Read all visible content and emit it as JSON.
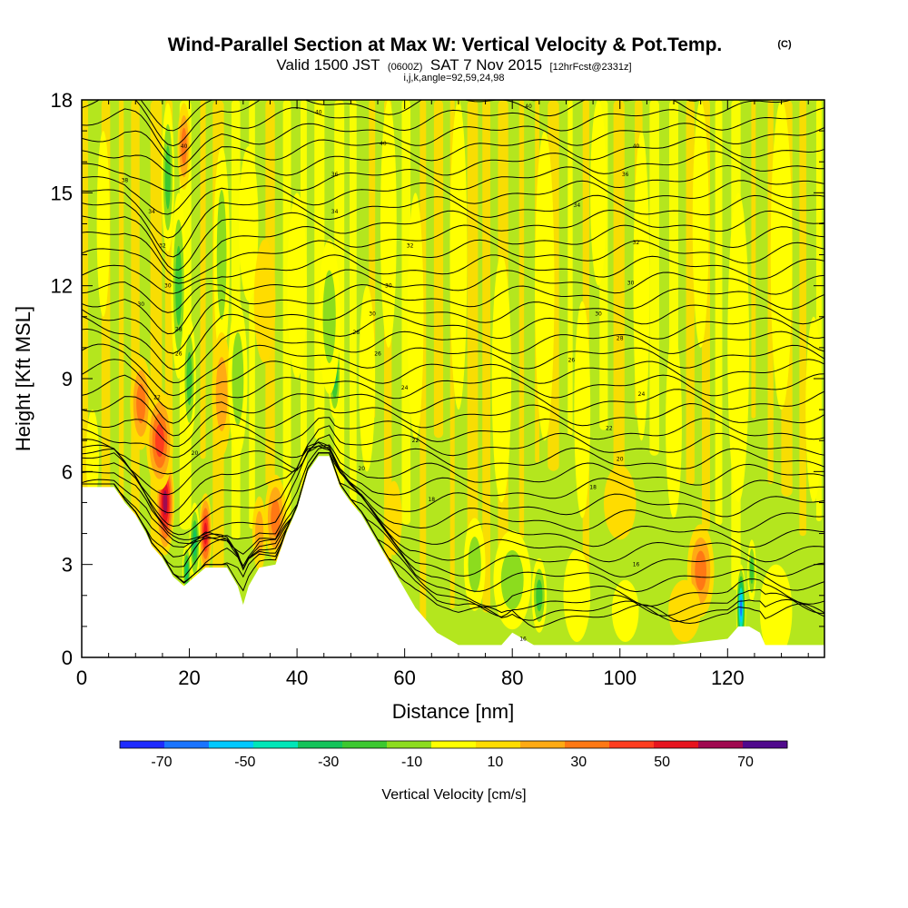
{
  "header": {
    "title": "Wind-Parallel Section at Max W: Vertical Velocity & Pot.Temp.",
    "title_mark": "(C)",
    "subtitle_parts": [
      "Valid 1500 JST",
      "(0600Z)",
      "SAT 7 Nov 2015",
      "[12hrFcst@2331z]"
    ],
    "params": "i,j,k,angle=92,59,24,98"
  },
  "chart_data": {
    "type": "heatmap",
    "xlabel": "Distance [nm]",
    "ylabel": "Height [Kft MSL]",
    "xlim": [
      0,
      138
    ],
    "ylim": [
      0,
      18
    ],
    "x_ticks": [
      0,
      20,
      40,
      60,
      80,
      100,
      120
    ],
    "y_ticks": [
      0,
      3,
      6,
      9,
      12,
      15,
      18
    ],
    "field": "Vertical Velocity",
    "colorbar": {
      "title": "Vertical Velocity [cm/s]",
      "tick_labels": [
        "-70",
        "-50",
        "-30",
        "-10",
        "10",
        "30",
        "50",
        "70"
      ],
      "tick_values": [
        -70,
        -50,
        -30,
        -10,
        10,
        30,
        50,
        70
      ],
      "bin_edges": [
        -80,
        -70,
        -60,
        -50,
        -40,
        -30,
        -20,
        -10,
        0,
        10,
        20,
        30,
        40,
        50,
        60,
        70,
        80
      ],
      "colors": [
        "#1e2bff",
        "#1a74ff",
        "#00c8ff",
        "#00e6b8",
        "#14c35a",
        "#3cc830",
        "#8cdc1e",
        "#ffff00",
        "#ffdc00",
        "#ffaa14",
        "#ff7814",
        "#ff3c1e",
        "#e6141e",
        "#a00a50",
        "#500a8c"
      ]
    },
    "terrain": [
      [
        0,
        5.5
      ],
      [
        6,
        5.5
      ],
      [
        8,
        5.0
      ],
      [
        10,
        4.6
      ],
      [
        12,
        4.0
      ],
      [
        13,
        3.6
      ],
      [
        15,
        3.2
      ],
      [
        17,
        2.6
      ],
      [
        19,
        2.3
      ],
      [
        21,
        2.6
      ],
      [
        23,
        2.9
      ],
      [
        25,
        2.9
      ],
      [
        27,
        2.9
      ],
      [
        29,
        2.3
      ],
      [
        30,
        1.7
      ],
      [
        31,
        2.3
      ],
      [
        33,
        2.9
      ],
      [
        36,
        3.0
      ],
      [
        38,
        4.0
      ],
      [
        40,
        4.8
      ],
      [
        42,
        6.0
      ],
      [
        44,
        6.5
      ],
      [
        46,
        6.5
      ],
      [
        48,
        5.5
      ],
      [
        50,
        5.0
      ],
      [
        52,
        4.6
      ],
      [
        54,
        4.0
      ],
      [
        56,
        3.4
      ],
      [
        58,
        2.8
      ],
      [
        60,
        2.2
      ],
      [
        62,
        1.6
      ],
      [
        64,
        1.2
      ],
      [
        66,
        0.8
      ],
      [
        68,
        0.6
      ],
      [
        70,
        0.4
      ],
      [
        74,
        0.4
      ],
      [
        78,
        0.4
      ],
      [
        80,
        0.8
      ],
      [
        82,
        0.6
      ],
      [
        84,
        0.4
      ],
      [
        90,
        0.4
      ],
      [
        100,
        0.4
      ],
      [
        110,
        0.4
      ],
      [
        120,
        0.6
      ],
      [
        122,
        1.0
      ],
      [
        124,
        1.0
      ],
      [
        126,
        0.8
      ],
      [
        127,
        0.4
      ],
      [
        138,
        0.4
      ]
    ],
    "vv_features": [
      {
        "x": 15.5,
        "y": 5.0,
        "sx": 1.7,
        "sy": 1.7,
        "v": 68
      },
      {
        "x": 14.5,
        "y": 7.0,
        "sx": 2.5,
        "sy": 1.6,
        "v": 48
      },
      {
        "x": 11.0,
        "y": 8.2,
        "sx": 2.0,
        "sy": 1.5,
        "v": 35
      },
      {
        "x": 23.0,
        "y": 4.0,
        "sx": 1.2,
        "sy": 1.3,
        "v": 55
      },
      {
        "x": 21.0,
        "y": 3.7,
        "sx": 1.0,
        "sy": 1.3,
        "v": -45
      },
      {
        "x": 19.5,
        "y": 2.8,
        "sx": 0.8,
        "sy": 0.9,
        "v": -40
      },
      {
        "x": 36.0,
        "y": 4.5,
        "sx": 2.0,
        "sy": 1.4,
        "v": 38
      },
      {
        "x": 33.0,
        "y": 4.0,
        "sx": 1.3,
        "sy": 1.2,
        "v": 28
      },
      {
        "x": 18.0,
        "y": 12.0,
        "sx": 1.4,
        "sy": 3.0,
        "v": -38
      },
      {
        "x": 16.0,
        "y": 15.5,
        "sx": 1.2,
        "sy": 2.4,
        "v": -34
      },
      {
        "x": 20.0,
        "y": 9.0,
        "sx": 1.2,
        "sy": 2.0,
        "v": -34
      },
      {
        "x": 19.0,
        "y": 16.5,
        "sx": 1.2,
        "sy": 1.4,
        "v": 30
      },
      {
        "x": 26.0,
        "y": 13.0,
        "sx": 1.5,
        "sy": 3.5,
        "v": -22
      },
      {
        "x": 26.0,
        "y": 8.5,
        "sx": 1.8,
        "sy": 2.0,
        "v": 20
      },
      {
        "x": 29.0,
        "y": 9.0,
        "sx": 1.8,
        "sy": 2.5,
        "v": -22
      },
      {
        "x": 31.0,
        "y": 14.0,
        "sx": 1.8,
        "sy": 2.5,
        "v": -18
      },
      {
        "x": 47.0,
        "y": 9.2,
        "sx": 1.2,
        "sy": 1.5,
        "v": -40
      },
      {
        "x": 46.0,
        "y": 11.0,
        "sx": 2.0,
        "sy": 2.5,
        "v": -24
      },
      {
        "x": 34.0,
        "y": 11.5,
        "sx": 2.0,
        "sy": 2.0,
        "v": 14
      },
      {
        "x": 40.0,
        "y": 12.0,
        "sx": 1.8,
        "sy": 3.0,
        "v": -16
      },
      {
        "x": 53.0,
        "y": 9.0,
        "sx": 1.5,
        "sy": 3.0,
        "v": -16
      },
      {
        "x": 57.0,
        "y": 14.0,
        "sx": 1.5,
        "sy": 4.0,
        "v": -15
      },
      {
        "x": 62.0,
        "y": 11.0,
        "sx": 1.5,
        "sy": 4.0,
        "v": -14
      },
      {
        "x": 70.0,
        "y": 13.0,
        "sx": 1.6,
        "sy": 5.0,
        "v": -15
      },
      {
        "x": 78.0,
        "y": 9.0,
        "sx": 1.8,
        "sy": 4.0,
        "v": -15
      },
      {
        "x": 86.0,
        "y": 12.0,
        "sx": 1.8,
        "sy": 5.0,
        "v": -16
      },
      {
        "x": 93.0,
        "y": 8.0,
        "sx": 1.5,
        "sy": 3.5,
        "v": -14
      },
      {
        "x": 96.0,
        "y": 15.0,
        "sx": 1.5,
        "sy": 3.0,
        "v": -15
      },
      {
        "x": 104.0,
        "y": 12.0,
        "sx": 1.5,
        "sy": 5.0,
        "v": -15
      },
      {
        "x": 110.0,
        "y": 7.5,
        "sx": 1.5,
        "sy": 3.0,
        "v": -14
      },
      {
        "x": 115.0,
        "y": 14.0,
        "sx": 1.5,
        "sy": 4.0,
        "v": -16
      },
      {
        "x": 122.0,
        "y": 10.0,
        "sx": 2.0,
        "sy": 5.0,
        "v": -15
      },
      {
        "x": 130.0,
        "y": 13.0,
        "sx": 2.0,
        "sy": 5.0,
        "v": -16
      },
      {
        "x": 136.0,
        "y": 8.0,
        "sx": 1.5,
        "sy": 3.0,
        "v": -15
      },
      {
        "x": 85.0,
        "y": 2.0,
        "sx": 1.4,
        "sy": 1.2,
        "v": -38
      },
      {
        "x": 80.0,
        "y": 2.5,
        "sx": 3.5,
        "sy": 1.6,
        "v": -22
      },
      {
        "x": 73.0,
        "y": 3.0,
        "sx": 2.0,
        "sy": 1.5,
        "v": -20
      },
      {
        "x": 92.0,
        "y": 2.0,
        "sx": 2.5,
        "sy": 1.5,
        "v": -18
      },
      {
        "x": 101.0,
        "y": 1.5,
        "sx": 2.5,
        "sy": 1.0,
        "v": -15
      },
      {
        "x": 115.0,
        "y": 2.8,
        "sx": 2.5,
        "sy": 1.5,
        "v": 38
      },
      {
        "x": 112.0,
        "y": 1.5,
        "sx": 3.0,
        "sy": 1.0,
        "v": 15
      },
      {
        "x": 122.5,
        "y": 1.6,
        "sx": 0.9,
        "sy": 1.4,
        "v": -70
      },
      {
        "x": 124.5,
        "y": 2.8,
        "sx": 0.8,
        "sy": 1.0,
        "v": -35
      },
      {
        "x": 129.0,
        "y": 1.5,
        "sx": 3.0,
        "sy": 1.5,
        "v": -14
      },
      {
        "x": 58.0,
        "y": 4.5,
        "sx": 1.5,
        "sy": 1.2,
        "v": 12
      },
      {
        "x": 100.0,
        "y": 5.0,
        "sx": 3.0,
        "sy": 1.2,
        "v": 14
      },
      {
        "x": 2.0,
        "y": 6.5,
        "sx": 1.2,
        "sy": 1.5,
        "v": -18
      },
      {
        "x": 4.0,
        "y": 14.0,
        "sx": 1.2,
        "sy": 3.0,
        "v": -14
      }
    ],
    "contour_labels": [
      {
        "x": 44,
        "y": 17.6,
        "text": "40"
      },
      {
        "x": 83,
        "y": 17.8,
        "text": "40"
      },
      {
        "x": 19,
        "y": 16.5,
        "text": "40"
      },
      {
        "x": 56,
        "y": 16.6,
        "text": "40"
      },
      {
        "x": 103,
        "y": 16.5,
        "text": "40"
      },
      {
        "x": 8,
        "y": 15.4,
        "text": "38"
      },
      {
        "x": 47,
        "y": 15.6,
        "text": "36"
      },
      {
        "x": 101,
        "y": 15.6,
        "text": "36"
      },
      {
        "x": 13,
        "y": 14.4,
        "text": "34"
      },
      {
        "x": 47,
        "y": 14.4,
        "text": "34"
      },
      {
        "x": 92,
        "y": 14.6,
        "text": "34"
      },
      {
        "x": 15,
        "y": 13.3,
        "text": "32"
      },
      {
        "x": 61,
        "y": 13.3,
        "text": "32"
      },
      {
        "x": 103,
        "y": 13.4,
        "text": "32"
      },
      {
        "x": 16,
        "y": 12.0,
        "text": "30"
      },
      {
        "x": 57,
        "y": 12.0,
        "text": "30"
      },
      {
        "x": 102,
        "y": 12.1,
        "text": "30"
      },
      {
        "x": 11,
        "y": 11.4,
        "text": "30"
      },
      {
        "x": 54,
        "y": 11.1,
        "text": "30"
      },
      {
        "x": 96,
        "y": 11.1,
        "text": "30"
      },
      {
        "x": 18,
        "y": 10.6,
        "text": "28"
      },
      {
        "x": 51,
        "y": 10.5,
        "text": "28"
      },
      {
        "x": 100,
        "y": 10.3,
        "text": "28"
      },
      {
        "x": 18,
        "y": 9.8,
        "text": "26"
      },
      {
        "x": 55,
        "y": 9.8,
        "text": "26"
      },
      {
        "x": 91,
        "y": 9.6,
        "text": "26"
      },
      {
        "x": 60,
        "y": 8.7,
        "text": "24"
      },
      {
        "x": 104,
        "y": 8.5,
        "text": "24"
      },
      {
        "x": 14,
        "y": 8.4,
        "text": "22"
      },
      {
        "x": 62,
        "y": 7.0,
        "text": "22"
      },
      {
        "x": 98,
        "y": 7.4,
        "text": "22"
      },
      {
        "x": 21,
        "y": 6.6,
        "text": "20"
      },
      {
        "x": 52,
        "y": 6.1,
        "text": "20"
      },
      {
        "x": 100,
        "y": 6.4,
        "text": "20"
      },
      {
        "x": 65,
        "y": 5.1,
        "text": "18"
      },
      {
        "x": 95,
        "y": 5.5,
        "text": "18"
      },
      {
        "x": 103,
        "y": 3.0,
        "text": "16"
      },
      {
        "x": 82,
        "y": 0.6,
        "text": "16"
      }
    ]
  }
}
